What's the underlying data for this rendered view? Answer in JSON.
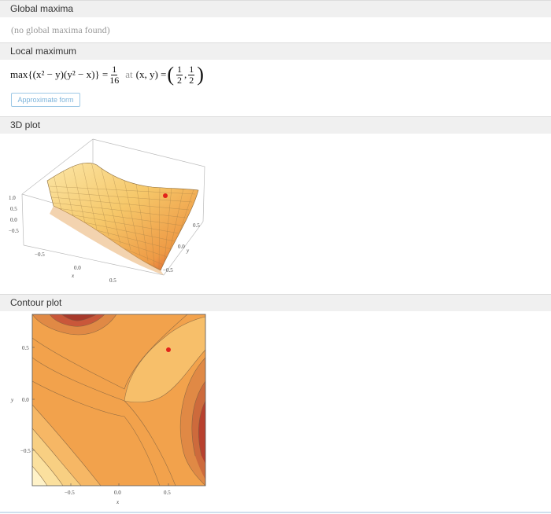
{
  "sections": {
    "global_maxima": {
      "title": "Global maxima",
      "note": "(no global maxima found)"
    },
    "local_maximum": {
      "title": "Local maximum",
      "expr": "max{(x² − y)(y² − x)} =",
      "value_num": "1",
      "value_den": "16",
      "at_label": "at",
      "point_label": "(x, y) =",
      "px_num": "1",
      "px_den": "2",
      "py_num": "1",
      "py_den": "2",
      "approx_button": "Approximate form"
    },
    "plot3d": {
      "title": "3D plot",
      "z_ticks": [
        "1.0",
        "0.5",
        "0.0",
        "−0.5"
      ],
      "x_ticks": [
        "−0.5",
        "0.0",
        "0.5"
      ],
      "x_label": "x",
      "y_ticks": [
        "0.5",
        "0.0",
        "−0.5"
      ],
      "y_label": "y",
      "marker_color": "#e2231a"
    },
    "contour_plot": {
      "title": "Contour plot",
      "y_ticks": [
        "0.5",
        "0.0",
        "−0.5"
      ],
      "y_label": "y",
      "x_ticks": [
        "−0.5",
        "0.0",
        "0.5"
      ],
      "x_label": "x",
      "marker_color": "#e2231a"
    }
  }
}
